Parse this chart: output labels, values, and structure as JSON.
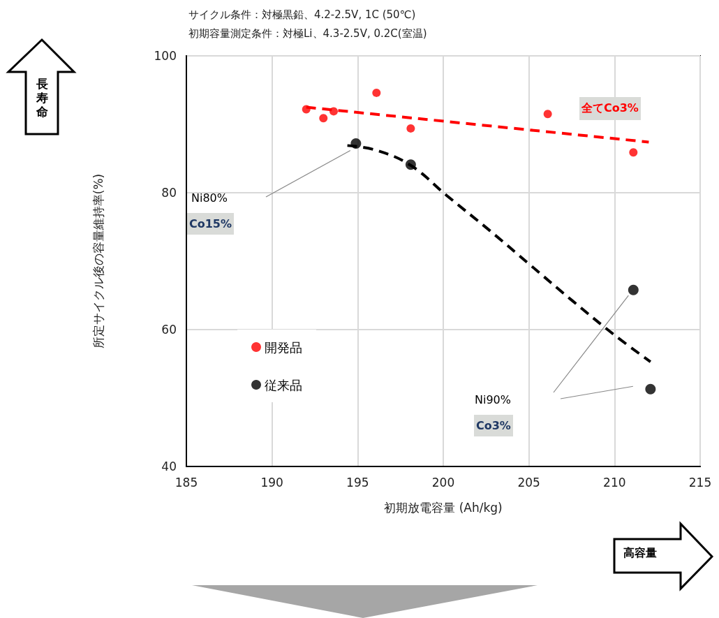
{
  "chart_data": {
    "type": "scatter",
    "title": "サイクル条件：対極黒鉛、4.2-2.5V, 1C (50℃)",
    "subtitle": "初期容量測定条件：対極Li、4.3-2.5V, 0.2C(室温)",
    "xlabel": "初期放電容量 (Ah/kg)",
    "ylabel": "所定サイクル後の容量維持率(%)",
    "annotations": [
      "Ni80%",
      "Co15%",
      "Ni90%",
      "Co3%",
      "全てCo3%",
      "長寿命",
      "高容量"
    ],
    "series": [
      {
        "name": "開発品",
        "color": "#ff0000",
        "x": [
          192.0,
          193.0,
          193.6,
          196.1,
          198.1,
          206.1,
          211.1
        ],
        "values": [
          92.2,
          90.9,
          91.9,
          94.6,
          89.4,
          91.5,
          85.9
        ]
      },
      {
        "name": "従来品",
        "color": "#000000",
        "x": [
          194.9,
          198.1,
          211.1,
          212.1
        ],
        "values": [
          87.2,
          84.1,
          65.8,
          51.3
        ]
      },
      {
        "type": "line",
        "color": "#ff0000",
        "line_style": "dashed",
        "marker": "none",
        "x": [
          192.0,
          212.0
        ],
        "values": [
          92.5,
          87.4
        ]
      },
      {
        "type": "line",
        "color": "#000000",
        "line_style": "dashed",
        "marker": "none",
        "x": [
          194.4,
          196.1,
          198.1,
          200.2,
          202.7,
          205.1,
          207.5,
          210.0,
          212.1
        ],
        "values": [
          86.9,
          86.2,
          84.0,
          79.6,
          74.5,
          69.4,
          64.3,
          59.2,
          55.3
        ]
      }
    ],
    "marker": "circle",
    "xlim": [
      185,
      215
    ],
    "xticks": [
      185,
      190,
      195,
      200,
      205,
      210,
      215
    ],
    "ylim": [
      40,
      100
    ],
    "yticks": [
      40,
      60,
      80,
      100
    ],
    "grid": true,
    "legend": "left"
  }
}
